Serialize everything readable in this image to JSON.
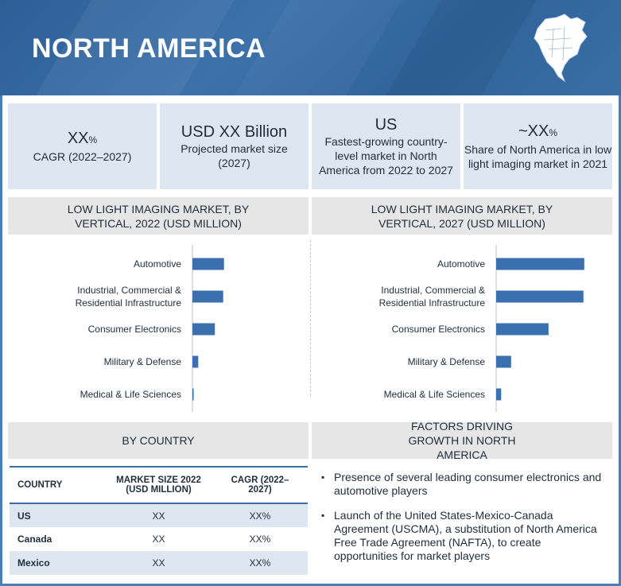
{
  "banner": {
    "title": "NORTH AMERICA"
  },
  "stats": [
    {
      "main": "XX",
      "main_suffix": "%",
      "sub": "CAGR (2022–2027)"
    },
    {
      "main": "USD XX Billion",
      "main_suffix": "",
      "sub": "Projected market size (2027)"
    },
    {
      "main": "US",
      "main_suffix": "",
      "sub": "Fastest-growing country-level market in North America from 2022 to 2027"
    },
    {
      "main": "~XX",
      "main_suffix": "%",
      "sub": "Share of North America in low light imaging market in 2021"
    }
  ],
  "chart_data": [
    {
      "type": "bar",
      "orientation": "horizontal",
      "title": "LOW LIGHT IMAGING MARKET, BY VERTICAL, 2022 (USD MILLION)",
      "categories": [
        "Automotive",
        "Industrial, Commercial & Residential Infrastructure",
        "Consumer Electronics",
        "Military & Defense",
        "Medical & Life Sciences"
      ],
      "category_lines": [
        [
          "Automotive"
        ],
        [
          "Industrial, Commercial &",
          "Residential Infrastructure"
        ],
        [
          "Consumer Electronics"
        ],
        [
          "Military & Defense"
        ],
        [
          "Medical & Life Sciences"
        ]
      ],
      "values": [
        38,
        37,
        27,
        7,
        1.5
      ],
      "xlim": [
        0,
        110
      ],
      "bar_color": "#3a70ad"
    },
    {
      "type": "bar",
      "orientation": "horizontal",
      "title": "LOW LIGHT IMAGING MARKET, BY VERTICAL, 2027 (USD MILLION)",
      "categories": [
        "Automotive",
        "Industrial, Commercial & Residential Infrastructure",
        "Consumer Electronics",
        "Military & Defense",
        "Medical & Life Sciences"
      ],
      "category_lines": [
        [
          "Automotive"
        ],
        [
          "Industrial, Commercial &",
          "Residential Infrastructure"
        ],
        [
          "Consumer Electronics"
        ],
        [
          "Military & Defense"
        ],
        [
          "Medical & Life Sciences"
        ]
      ],
      "values": [
        106,
        105,
        63,
        18,
        6
      ],
      "xlim": [
        0,
        110
      ],
      "bar_color": "#3a70ad"
    }
  ],
  "by_country": {
    "heading": "BY COUNTRY",
    "columns": [
      "COUNTRY",
      "MARKET SIZE 2022 (USD MILLION)",
      "CAGR (2022–2027)"
    ],
    "rows": [
      {
        "country": "US",
        "size": "XX",
        "cagr": "XX%"
      },
      {
        "country": "Canada",
        "size": "XX",
        "cagr": "XX%"
      },
      {
        "country": "Mexico",
        "size": "XX",
        "cagr": "XX%"
      }
    ]
  },
  "factors": {
    "heading": "FACTORS DRIVING GROWTH IN NORTH AMERICA",
    "items": [
      "Presence of several leading consumer electronics and automotive players",
      "Launch of the United States-Mexico-Canada Agreement (USCMA), a substitution of North America Free Trade Agreement (NAFTA), to create opportunities for market players"
    ]
  }
}
